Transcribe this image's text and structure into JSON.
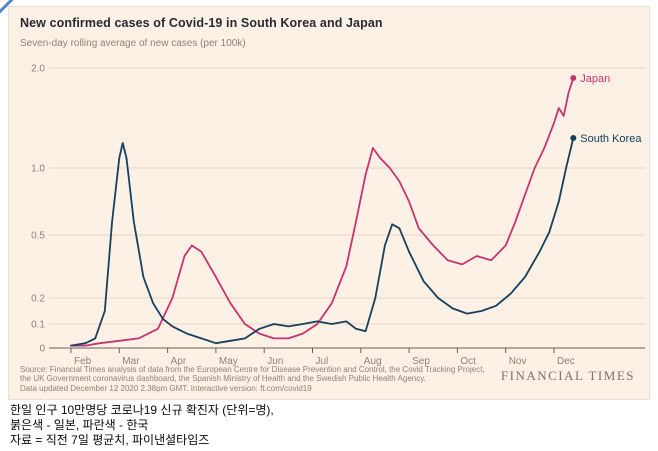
{
  "chart": {
    "title": "New confirmed cases of Covid-19 in South Korea and Japan",
    "subtitle": "Seven-day rolling average of new cases (per 100k)",
    "source_lines": [
      "Source: Financial Times analysis of data from the European Centre for Disease Prevention and Control, the Covid Tracking Project,",
      "the UK Government coronavirus dashboard, the Spanish Ministry of Health and the Swedish Public Health Agency.",
      "Data updated December 12 2020 2.38pm GMT. Interactive version: ft.com/covid19"
    ],
    "brand": "FINANCIAL TIMES",
    "colors": {
      "background": "#fdf0e4",
      "grid": "#e9d6c4",
      "baseline": "#66605c",
      "tick_text": "#8d8577",
      "japan": "#c4356f",
      "south_korea": "#15405e"
    }
  },
  "chart_data": {
    "type": "line",
    "title": "New confirmed cases of Covid-19 in South Korea and Japan",
    "subtitle": "Seven-day rolling average of new cases (per 100k)",
    "xlabel": "",
    "ylabel": "New cases per 100k, 7-day rolling average",
    "x_unit": "month index, 0 = Feb 2020, 10.4 = Dec 12 2020",
    "x_tick_labels": [
      "Feb",
      "Mar",
      "Apr",
      "May",
      "Jun",
      "Jul",
      "Aug",
      "Sep",
      "Oct",
      "Nov",
      "Dec"
    ],
    "y_ticks": [
      0,
      0.1,
      0.2,
      0.5,
      1.0,
      2.0
    ],
    "y_tick_labels": [
      "0",
      "0.1",
      "0.2",
      "0.5",
      "1.0",
      "2.0"
    ],
    "ylim": [
      0,
      2.0
    ],
    "grid": true,
    "legend_position": "line-end-labels",
    "series": [
      {
        "name": "Japan",
        "color_key": "japan",
        "points": [
          [
            0,
            0.01
          ],
          [
            0.3,
            0.01
          ],
          [
            0.6,
            0.02
          ],
          [
            1.0,
            0.03
          ],
          [
            1.4,
            0.04
          ],
          [
            1.8,
            0.08
          ],
          [
            2.1,
            0.2
          ],
          [
            2.35,
            0.4
          ],
          [
            2.5,
            0.45
          ],
          [
            2.7,
            0.42
          ],
          [
            3.0,
            0.3
          ],
          [
            3.3,
            0.18
          ],
          [
            3.6,
            0.1
          ],
          [
            3.9,
            0.06
          ],
          [
            4.2,
            0.04
          ],
          [
            4.5,
            0.04
          ],
          [
            4.8,
            0.06
          ],
          [
            5.1,
            0.1
          ],
          [
            5.4,
            0.18
          ],
          [
            5.7,
            0.35
          ],
          [
            5.9,
            0.6
          ],
          [
            6.1,
            0.95
          ],
          [
            6.25,
            1.2
          ],
          [
            6.4,
            1.1
          ],
          [
            6.6,
            1.0
          ],
          [
            6.8,
            0.9
          ],
          [
            7.0,
            0.75
          ],
          [
            7.2,
            0.55
          ],
          [
            7.5,
            0.45
          ],
          [
            7.8,
            0.38
          ],
          [
            8.1,
            0.36
          ],
          [
            8.4,
            0.4
          ],
          [
            8.7,
            0.38
          ],
          [
            9.0,
            0.45
          ],
          [
            9.2,
            0.6
          ],
          [
            9.4,
            0.8
          ],
          [
            9.6,
            1.0
          ],
          [
            9.8,
            1.2
          ],
          [
            10.0,
            1.45
          ],
          [
            10.1,
            1.6
          ],
          [
            10.2,
            1.52
          ],
          [
            10.3,
            1.75
          ],
          [
            10.4,
            1.9
          ]
        ]
      },
      {
        "name": "South Korea",
        "color_key": "south_korea",
        "points": [
          [
            0,
            0.01
          ],
          [
            0.3,
            0.02
          ],
          [
            0.5,
            0.04
          ],
          [
            0.7,
            0.15
          ],
          [
            0.85,
            0.6
          ],
          [
            1.0,
            1.1
          ],
          [
            1.07,
            1.25
          ],
          [
            1.15,
            1.1
          ],
          [
            1.3,
            0.6
          ],
          [
            1.5,
            0.3
          ],
          [
            1.7,
            0.18
          ],
          [
            1.9,
            0.12
          ],
          [
            2.1,
            0.09
          ],
          [
            2.4,
            0.06
          ],
          [
            2.7,
            0.04
          ],
          [
            3.0,
            0.02
          ],
          [
            3.3,
            0.03
          ],
          [
            3.6,
            0.04
          ],
          [
            3.9,
            0.08
          ],
          [
            4.2,
            0.1
          ],
          [
            4.5,
            0.09
          ],
          [
            4.8,
            0.1
          ],
          [
            5.1,
            0.11
          ],
          [
            5.4,
            0.1
          ],
          [
            5.7,
            0.11
          ],
          [
            5.9,
            0.08
          ],
          [
            6.1,
            0.07
          ],
          [
            6.3,
            0.2
          ],
          [
            6.5,
            0.45
          ],
          [
            6.65,
            0.58
          ],
          [
            6.8,
            0.55
          ],
          [
            7.0,
            0.42
          ],
          [
            7.3,
            0.28
          ],
          [
            7.6,
            0.2
          ],
          [
            7.9,
            0.16
          ],
          [
            8.2,
            0.14
          ],
          [
            8.5,
            0.15
          ],
          [
            8.8,
            0.17
          ],
          [
            9.1,
            0.22
          ],
          [
            9.4,
            0.3
          ],
          [
            9.7,
            0.42
          ],
          [
            9.9,
            0.52
          ],
          [
            10.1,
            0.75
          ],
          [
            10.25,
            1.0
          ],
          [
            10.4,
            1.3
          ]
        ]
      }
    ]
  },
  "caption": {
    "line1": "한일 인구 10만명당 코로나19 신규 확진자 (단위=명),",
    "line2": "붉은색 - 일본, 파란색 - 한국",
    "line3": "자료 = 직전 7일 평균치, 파이낸셜타임즈"
  }
}
